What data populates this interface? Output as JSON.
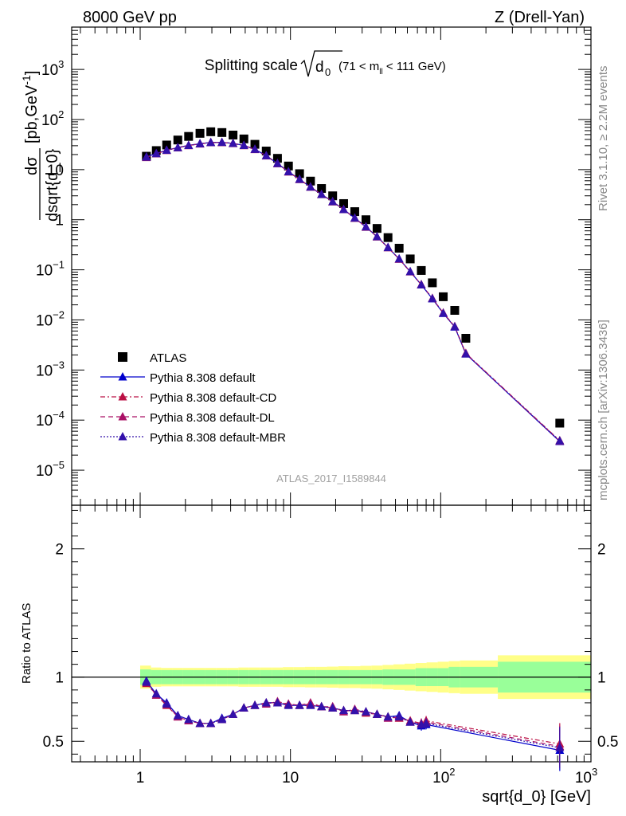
{
  "header": {
    "left": "8000 GeV pp",
    "right": "Z (Drell-Yan)"
  },
  "side_labels": {
    "rivet": "Rivet 3.1.10, ≥ 2.2M events",
    "mcplots": "mcplots.cern.ch [arXiv:1306.3436]"
  },
  "chart_data": [
    {
      "type": "scatter",
      "panel": "main",
      "title": "Splitting scale",
      "title_symbol": "d",
      "title_subscript": "0",
      "title_range_pre": "(71 < m",
      "title_range_sub": "ll",
      "title_range_post": " < 111 GeV)",
      "ylabel_num": "dσ",
      "ylabel_den": "dsqrt{d_0}",
      "ylabel_unit": " [pb,GeV",
      "ylabel_unit_sup": "-1",
      "ylabel_unit_close": "]",
      "x_scale": "log",
      "y_scale": "log",
      "xlim": [
        0.35,
        1000
      ],
      "ylim": [
        2e-06,
        7000
      ],
      "watermark": "ATLAS_2017_I1589844",
      "legend_position": "bottom-left",
      "y_ticks": [
        {
          "base": "10",
          "exp": "3",
          "v": 1000
        },
        {
          "base": "10",
          "exp": "2",
          "v": 100
        },
        {
          "base": "10",
          "exp": "",
          "v": 10
        },
        {
          "base": "1",
          "exp": "",
          "v": 1
        },
        {
          "base": "10",
          "exp": "−1",
          "v": 0.1
        },
        {
          "base": "10",
          "exp": "−2",
          "v": 0.01
        },
        {
          "base": "10",
          "exp": "−3",
          "v": 0.001
        },
        {
          "base": "10",
          "exp": "−4",
          "v": 0.0001
        },
        {
          "base": "10",
          "exp": "−5",
          "v": 1e-05
        }
      ],
      "x": [
        1.1,
        1.28,
        1.5,
        1.78,
        2.1,
        2.5,
        2.95,
        3.5,
        4.15,
        4.9,
        5.8,
        6.9,
        8.2,
        9.7,
        11.5,
        13.6,
        16.1,
        19.1,
        22.6,
        26.8,
        31.8,
        37.7,
        44.6,
        52.9,
        62.7,
        74.3,
        88.0,
        104.0,
        124.0,
        147.0,
        200.0
      ],
      "x_last": 620,
      "series": [
        {
          "name": "ATLAS",
          "color": "#000000",
          "marker": "square",
          "line": "none",
          "values": [
            18.5,
            24.0,
            31.0,
            39.0,
            46.0,
            53.0,
            57.0,
            55.0,
            49.0,
            41.0,
            32.0,
            23.5,
            16.8,
            11.8,
            8.3,
            5.9,
            4.2,
            3.0,
            2.1,
            1.45,
            1.0,
            0.67,
            0.44,
            0.27,
            0.165,
            0.097,
            0.055,
            0.029,
            0.0155,
            0.0043,
            8.7e-05
          ]
        },
        {
          "name": "Pythia 8.308 default",
          "color": "#0000cc",
          "marker": "triangle",
          "line": "solid",
          "values": [
            18.0,
            21.0,
            24.5,
            27.5,
            30.5,
            33.0,
            35.0,
            35.0,
            33.5,
            30.5,
            25.5,
            19.0,
            13.3,
            9.1,
            6.4,
            4.5,
            3.2,
            2.3,
            1.6,
            1.08,
            0.72,
            0.46,
            0.28,
            0.165,
            0.092,
            0.05,
            0.0265,
            0.0135,
            0.0072,
            0.0021,
            3.75e-05
          ]
        },
        {
          "name": "Pythia 8.308 default-CD",
          "color": "#bb1144",
          "marker": "triangle",
          "line": "dashdot",
          "values": [
            17.5,
            20.7,
            24.2,
            27.3,
            30.2,
            32.6,
            34.6,
            34.8,
            33.2,
            30.2,
            25.2,
            18.8,
            13.2,
            9.0,
            6.35,
            4.48,
            3.18,
            2.28,
            1.6,
            1.07,
            0.71,
            0.455,
            0.277,
            0.163,
            0.091,
            0.051,
            0.027,
            0.0138,
            0.0074,
            0.00215,
            3.9e-05
          ]
        },
        {
          "name": "Pythia 8.308 default-DL",
          "color": "#aa1166",
          "marker": "triangle",
          "line": "dashed",
          "values": [
            17.6,
            20.8,
            24.3,
            27.4,
            30.3,
            32.7,
            34.7,
            34.9,
            33.3,
            30.3,
            25.3,
            18.9,
            13.2,
            9.05,
            6.38,
            4.5,
            3.19,
            2.29,
            1.6,
            1.075,
            0.715,
            0.457,
            0.278,
            0.164,
            0.0915,
            0.0505,
            0.0268,
            0.0137,
            0.0073,
            0.00213,
            3.8e-05
          ]
        },
        {
          "name": "Pythia 8.308 default-MBR",
          "color": "#3311aa",
          "marker": "triangle",
          "line": "dotted",
          "values": [
            17.8,
            20.9,
            24.4,
            27.5,
            30.4,
            32.8,
            34.8,
            35.0,
            33.4,
            30.4,
            25.4,
            18.95,
            13.25,
            9.08,
            6.4,
            4.5,
            3.2,
            2.3,
            1.6,
            1.078,
            0.718,
            0.459,
            0.279,
            0.165,
            0.0918,
            0.0502,
            0.0266,
            0.0136,
            0.0073,
            0.0021,
            3.85e-05
          ]
        }
      ]
    },
    {
      "type": "scatter",
      "panel": "ratio",
      "ylabel": "Ratio to ATLAS",
      "xlabel": "sqrt{d_0} [GeV]",
      "x_scale": "log",
      "xlim": [
        0.35,
        1000
      ],
      "ylim": [
        0.34,
        2.34
      ],
      "x_ticks": [
        {
          "base": "1",
          "exp": "",
          "v": 1
        },
        {
          "base": "10",
          "exp": "",
          "v": 10
        },
        {
          "base": "10",
          "exp": "2",
          "v": 100
        },
        {
          "base": "10",
          "exp": "3",
          "v": 1000
        }
      ],
      "y_ticks": [
        {
          "label": "0.5",
          "v": 0.5
        },
        {
          "label": "1",
          "v": 1
        },
        {
          "label": "2",
          "v": 2
        }
      ],
      "bands": {
        "edges": [
          1.0,
          1.18,
          1.38,
          1.63,
          1.93,
          2.28,
          2.7,
          3.2,
          3.8,
          4.5,
          5.3,
          6.3,
          7.5,
          8.9,
          10.5,
          12.5,
          14.8,
          17.5,
          20.8,
          24.6,
          29.2,
          34.6,
          41.0,
          48.5,
          57.5,
          68.0,
          80.5,
          95.5,
          113.0,
          134.0,
          240.0,
          1000.0
        ],
        "inner": [
          0.06,
          0.055,
          0.055,
          0.055,
          0.055,
          0.055,
          0.055,
          0.055,
          0.055,
          0.055,
          0.055,
          0.055,
          0.055,
          0.055,
          0.055,
          0.055,
          0.055,
          0.055,
          0.055,
          0.055,
          0.055,
          0.055,
          0.06,
          0.06,
          0.06,
          0.07,
          0.07,
          0.07,
          0.08,
          0.08,
          0.12
        ],
        "outer": [
          0.09,
          0.075,
          0.072,
          0.072,
          0.072,
          0.072,
          0.072,
          0.072,
          0.072,
          0.075,
          0.075,
          0.075,
          0.075,
          0.078,
          0.078,
          0.08,
          0.08,
          0.082,
          0.085,
          0.085,
          0.088,
          0.09,
          0.095,
          0.1,
          0.105,
          0.11,
          0.115,
          0.12,
          0.125,
          0.13,
          0.17
        ],
        "inner_color": "#99ff99",
        "outer_color": "#ffff88"
      },
      "x": [
        1.1,
        1.28,
        1.5,
        1.78,
        2.1,
        2.5,
        2.95,
        3.5,
        4.15,
        4.9,
        5.8,
        6.9,
        8.2,
        9.7,
        11.5,
        13.6,
        16.1,
        19.1,
        22.6,
        26.8,
        31.8,
        37.7,
        44.6,
        52.9,
        62.7,
        74.3,
        80.0,
        620.0
      ],
      "series": [
        {
          "name": "Pythia 8.308 default",
          "color": "#0000cc",
          "line": "solid",
          "values": [
            0.97,
            0.87,
            0.8,
            0.7,
            0.67,
            0.64,
            0.64,
            0.68,
            0.71,
            0.76,
            0.78,
            0.8,
            0.8,
            0.78,
            0.78,
            0.78,
            0.77,
            0.76,
            0.74,
            0.74,
            0.73,
            0.71,
            0.69,
            0.7,
            0.65,
            0.62,
            0.63,
            0.43
          ]
        },
        {
          "name": "Pythia 8.308 default-CD",
          "color": "#bb1144",
          "line": "dashdot",
          "values": [
            0.95,
            0.86,
            0.78,
            0.69,
            0.66,
            0.64,
            0.64,
            0.67,
            0.71,
            0.76,
            0.78,
            0.8,
            0.8,
            0.79,
            0.78,
            0.79,
            0.77,
            0.76,
            0.74,
            0.74,
            0.72,
            0.71,
            0.69,
            0.68,
            0.66,
            0.64,
            0.66,
            0.48
          ]
        },
        {
          "name": "Pythia 8.308 default-DL",
          "color": "#aa1166",
          "line": "dashed",
          "values": [
            0.96,
            0.86,
            0.79,
            0.69,
            0.66,
            0.64,
            0.64,
            0.67,
            0.71,
            0.76,
            0.78,
            0.79,
            0.81,
            0.79,
            0.78,
            0.8,
            0.77,
            0.77,
            0.73,
            0.75,
            0.73,
            0.71,
            0.68,
            0.69,
            0.65,
            0.64,
            0.65,
            0.46
          ]
        },
        {
          "name": "Pythia 8.308 default-MBR",
          "color": "#3311aa",
          "line": "dotted",
          "values": [
            0.96,
            0.87,
            0.79,
            0.7,
            0.67,
            0.64,
            0.64,
            0.67,
            0.71,
            0.76,
            0.78,
            0.8,
            0.8,
            0.78,
            0.78,
            0.78,
            0.77,
            0.76,
            0.74,
            0.74,
            0.73,
            0.71,
            0.69,
            0.69,
            0.65,
            0.63,
            0.64,
            0.45
          ]
        }
      ]
    }
  ]
}
